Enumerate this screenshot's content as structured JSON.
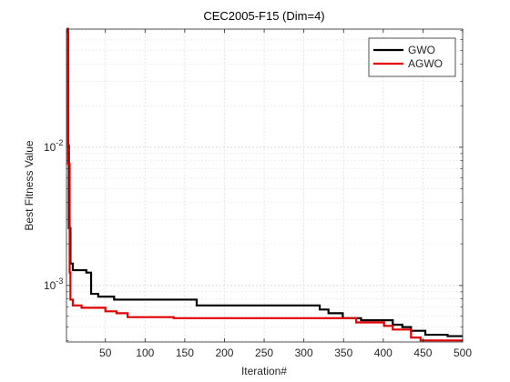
{
  "chart_data": {
    "type": "line",
    "title": "CEC2005-F15 (Dim=4)",
    "xlabel": "Iteration#",
    "ylabel": "Best Fitness Value",
    "xlim": [
      1,
      500
    ],
    "xticks": [
      50,
      100,
      150,
      200,
      250,
      300,
      350,
      400,
      450,
      500
    ],
    "ylim": [
      0.00039,
      0.0716
    ],
    "yticks": [
      {
        "value": 0.001,
        "label": "10",
        "exponent": "-3"
      },
      {
        "value": 0.01,
        "label": "10",
        "exponent": "-2"
      }
    ],
    "log_y": true,
    "grid": true,
    "step": true,
    "legend": "upper right",
    "series": [
      {
        "name": "GWO",
        "color": "#000000",
        "x": [
          1,
          3,
          4,
          6,
          9,
          26,
          32,
          41,
          61,
          165,
          320,
          331,
          349,
          372,
          412,
          424,
          435,
          453,
          481,
          500
        ],
        "values": [
          0.0685,
          0.0103,
          0.0026,
          0.00144,
          0.00129,
          0.00124,
          0.00087,
          0.00083,
          0.00079,
          0.000717,
          0.00067,
          0.00063,
          0.00058,
          0.00056,
          0.00052,
          0.0005,
          0.00047,
          0.00044,
          0.00043,
          0.00043
        ]
      },
      {
        "name": "AGWO",
        "color": "#e00000",
        "x": [
          1,
          3,
          5,
          6,
          9,
          20,
          50,
          64,
          78,
          136,
          366,
          401,
          412,
          435,
          447,
          470,
          500
        ],
        "values": [
          0.072,
          0.0076,
          0.00124,
          0.00079,
          0.000717,
          0.00069,
          0.00065,
          0.00063,
          0.00059,
          0.00058,
          0.00054,
          0.00051,
          0.00048,
          0.00042,
          0.0004,
          0.0004,
          0.0004
        ]
      }
    ]
  }
}
